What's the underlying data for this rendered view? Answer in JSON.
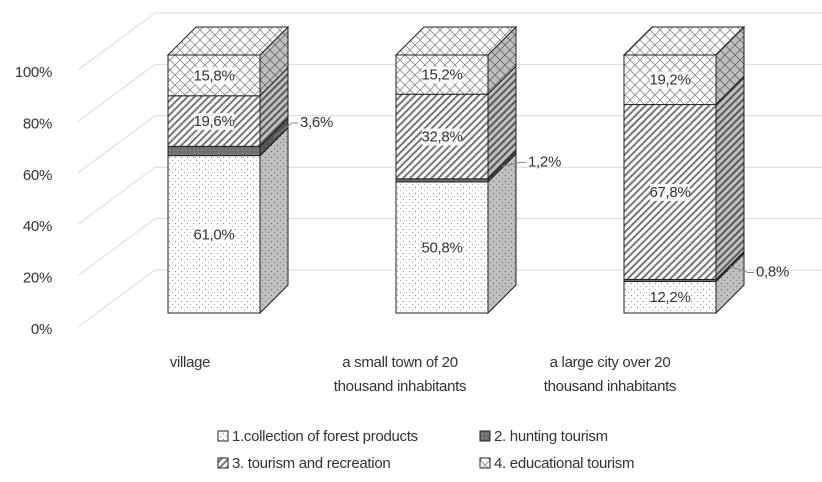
{
  "chart_data": {
    "type": "bar3d_stacked",
    "categories": [
      "village",
      [
        "a small town of 20",
        "thousand inhabitants"
      ],
      [
        "a large city over 20",
        "thousand inhabitants"
      ]
    ],
    "series": [
      {
        "name": "1.collection of forest products",
        "color": "#ffffff",
        "values": [
          61.0,
          50.8,
          12.2
        ],
        "value_labels": [
          "61,0%",
          "50,8%",
          "12,2%"
        ]
      },
      {
        "name": "2. hunting tourism",
        "color": "#7f7f7f",
        "values": [
          3.6,
          1.2,
          0.8
        ],
        "value_labels": [
          "3,6%",
          "1,2%",
          "0,8%"
        ]
      },
      {
        "name": "3. tourism and recreation",
        "color": "#bfbfbf",
        "values": [
          19.6,
          32.8,
          67.8
        ],
        "value_labels": [
          "19,6%",
          "32,8%",
          "67,8%"
        ]
      },
      {
        "name": "4. educational tourism",
        "color": "#e0e0e0",
        "values": [
          15.8,
          15.2,
          19.2
        ],
        "value_labels": [
          "15,8%",
          "15,2%",
          "19,2%"
        ]
      }
    ],
    "ylim": [
      0,
      100
    ],
    "yticks": [
      {
        "value": 0,
        "label": "0%"
      },
      {
        "value": 20,
        "label": "20%"
      },
      {
        "value": 40,
        "label": "40%"
      },
      {
        "value": 60,
        "label": "60%"
      },
      {
        "value": 80,
        "label": "80%"
      },
      {
        "value": 100,
        "label": "100%"
      }
    ],
    "grid": true
  }
}
